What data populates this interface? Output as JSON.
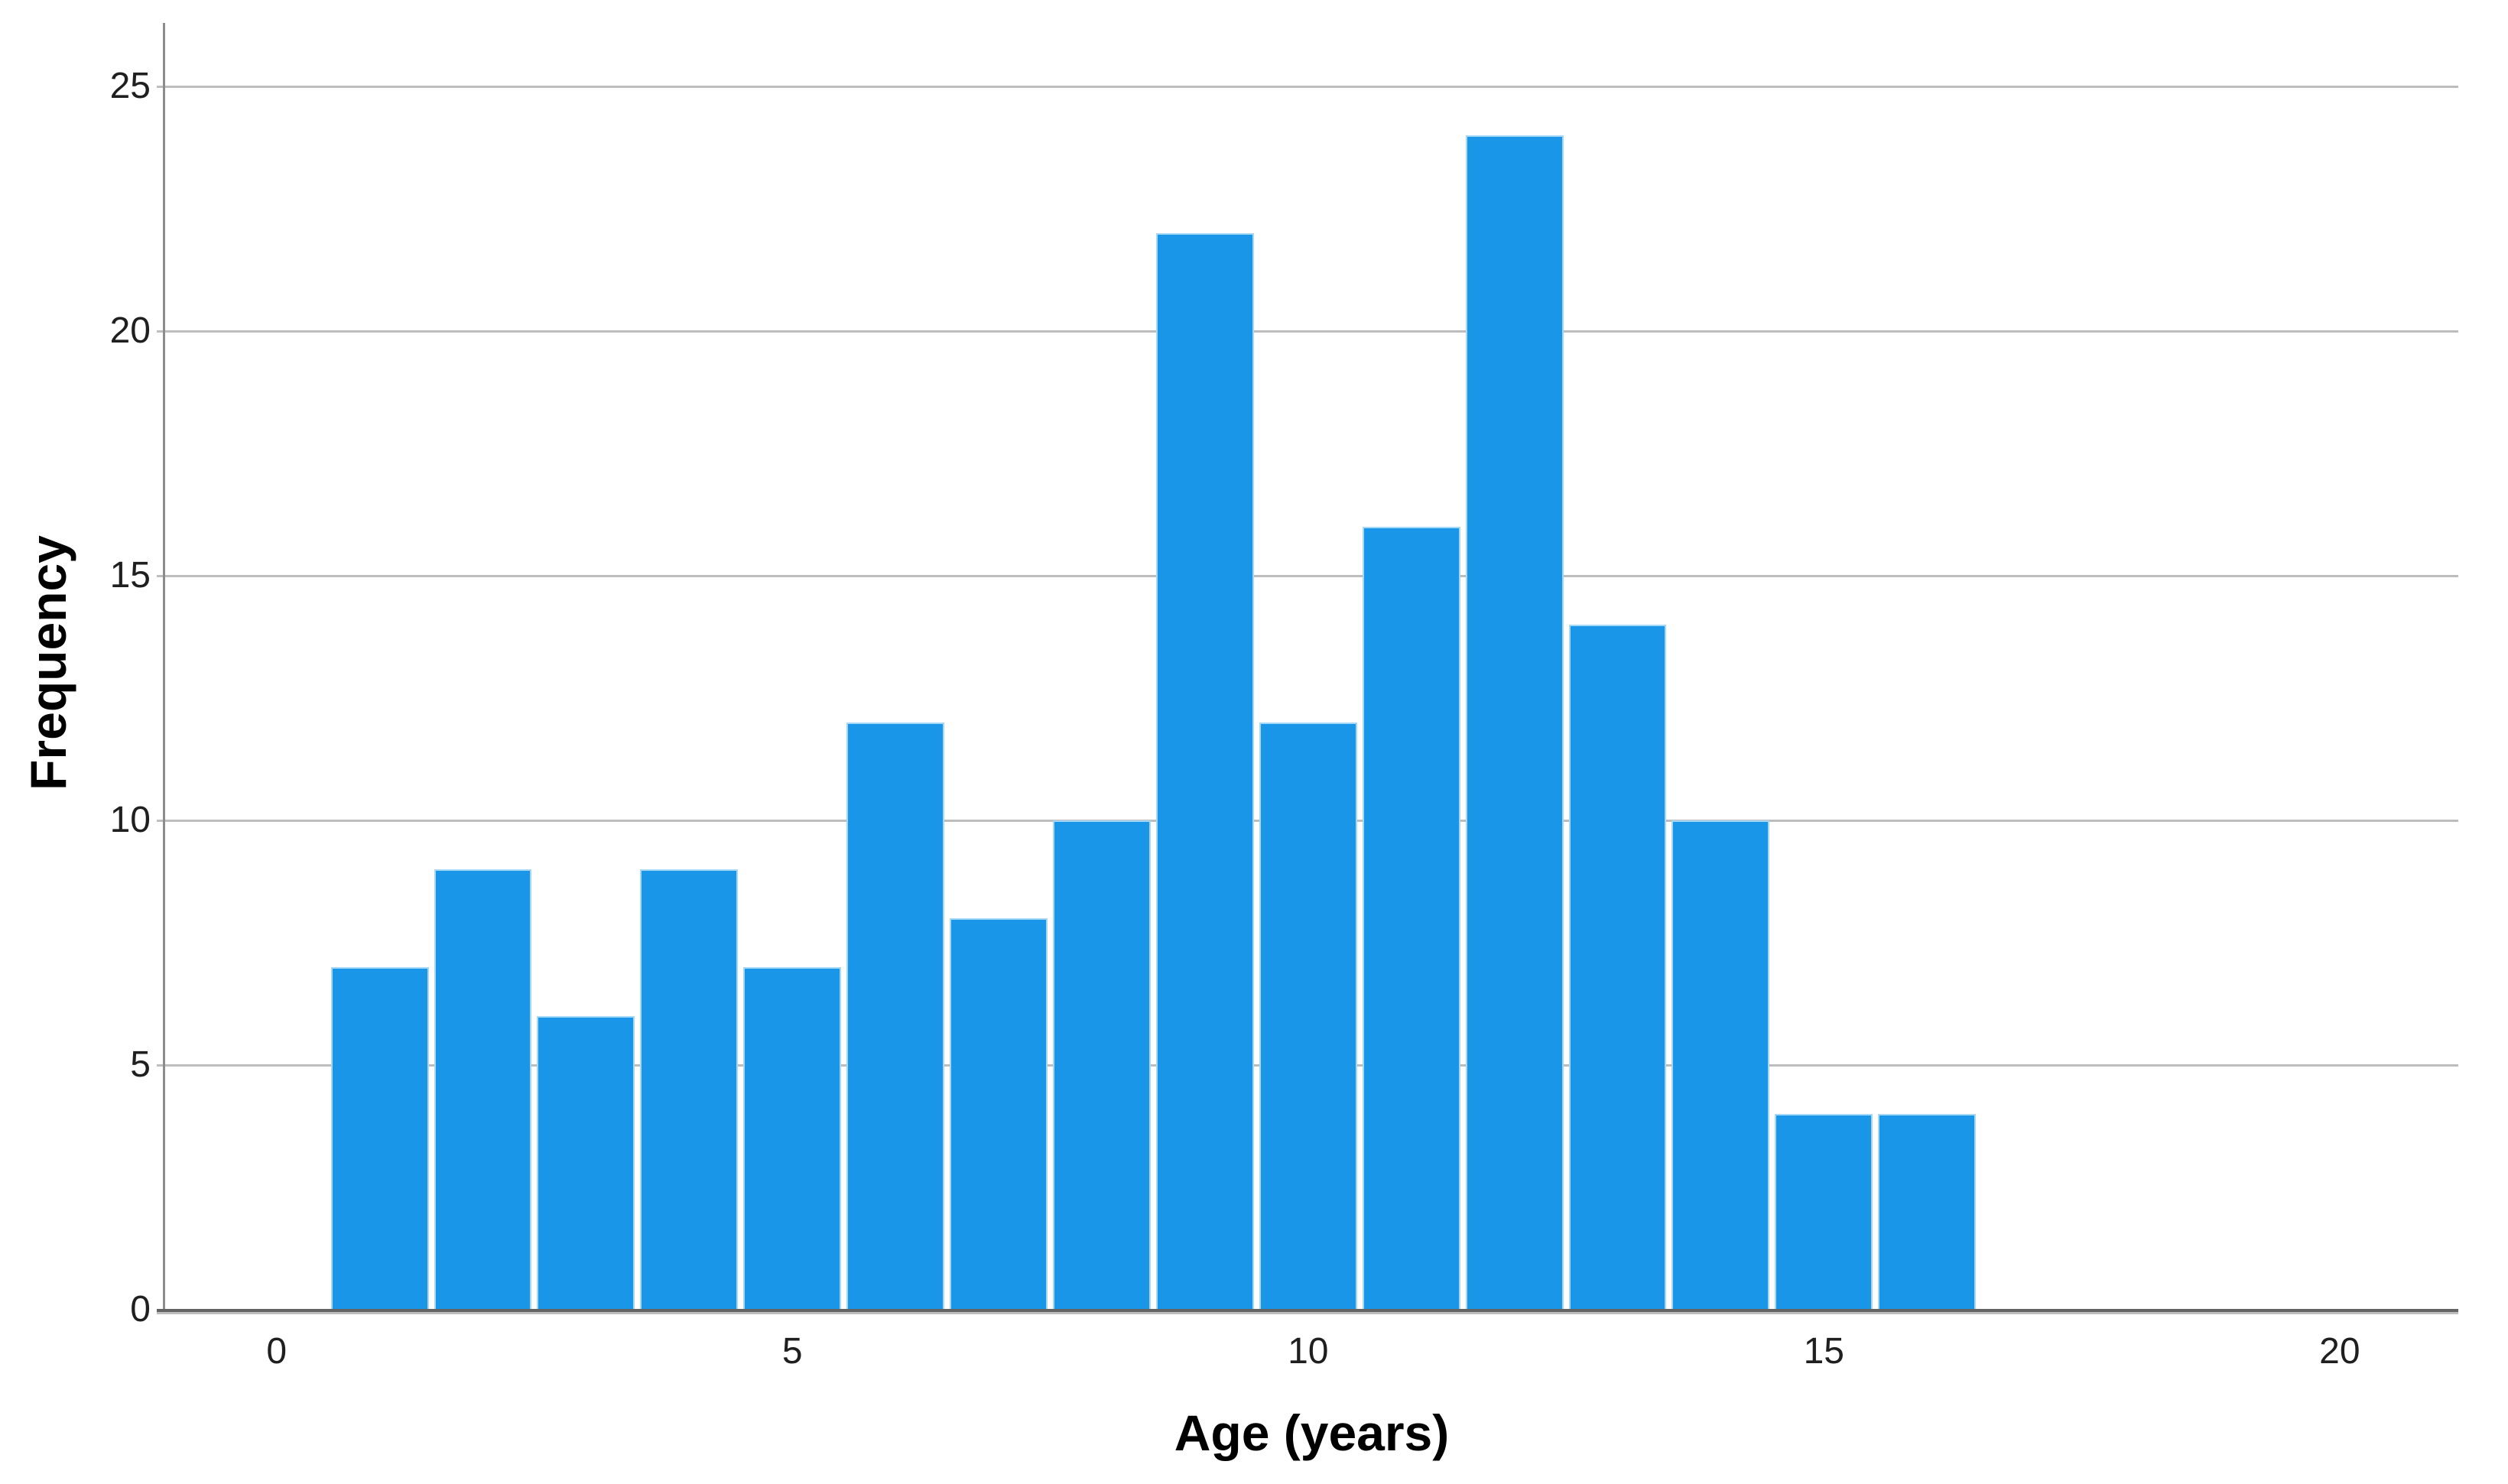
{
  "chart_data": {
    "type": "bar",
    "subtype": "histogram",
    "title": "",
    "xlabel": "Age (years)",
    "ylabel": "Frequency",
    "bin_width": 1,
    "bin_centers": [
      1,
      2,
      3,
      4,
      5,
      6,
      7,
      8,
      9,
      10,
      11,
      12,
      13,
      14,
      15,
      16
    ],
    "values": [
      7,
      9,
      6,
      9,
      7,
      12,
      8,
      10,
      22,
      12,
      16,
      24,
      14,
      10,
      4,
      4
    ],
    "x_ticks": [
      0,
      5,
      10,
      15,
      20
    ],
    "y_ticks": [
      0,
      5,
      10,
      15,
      20,
      25
    ],
    "xlim": [
      -1.08,
      21.15
    ],
    "ylim": [
      0,
      26.3
    ],
    "grid": "horizontal",
    "legend": "none",
    "colors": {
      "bar_fill": "#1996E8",
      "bar_border": "#A6D7F6",
      "gridline": "#BDBDBD",
      "x_axis": "#646464",
      "y_axis": "#8C8C8C",
      "tick_text": "#1F1F1F",
      "title_text": "#000000",
      "background": "#FFFFFF"
    }
  }
}
